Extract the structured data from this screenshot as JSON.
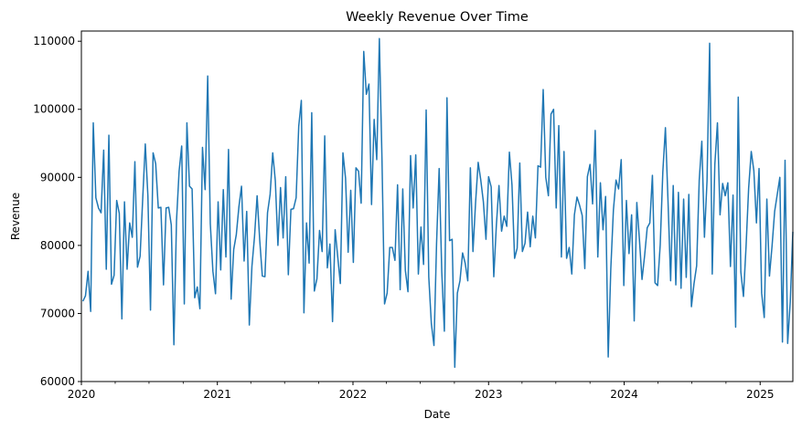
{
  "chart_data": {
    "type": "line",
    "title": "Weekly Revenue Over Time",
    "xlabel": "Date",
    "ylabel": "Revenue",
    "x_range": [
      "2020-01-01",
      "2025-03-30"
    ],
    "ylim": [
      60000,
      111500
    ],
    "x_ticks": [
      "2020",
      "2021",
      "2022",
      "2023",
      "2024",
      "2025"
    ],
    "y_ticks": [
      "60000",
      "70000",
      "80000",
      "90000",
      "100000",
      "110000"
    ],
    "grid": false,
    "legend": "none",
    "series": [
      {
        "color": "#1f77b4",
        "frequency": "weekly",
        "start": "2020-01-05",
        "values": [
          71800,
          72600,
          76200,
          70300,
          98000,
          87000,
          85500,
          84800,
          94000,
          76500,
          96200,
          74300,
          75600,
          86600,
          84700,
          69200,
          86400,
          76500,
          83300,
          81200,
          92300,
          76800,
          78400,
          86800,
          94900,
          87300,
          70500,
          93600,
          92000,
          85500,
          85600,
          74200,
          85500,
          85600,
          83000,
          65400,
          83600,
          90900,
          94600,
          71400,
          98000,
          88700,
          88300,
          72300,
          73900,
          70700,
          94400,
          88200,
          104900,
          83200,
          76200,
          72900,
          86400,
          76400,
          88200,
          78300,
          94100,
          72100,
          79400,
          81600,
          85700,
          88700,
          77700,
          85000,
          68300,
          76900,
          81300,
          87300,
          80800,
          75500,
          75400,
          84800,
          87500,
          93600,
          89500,
          80000,
          88500,
          81100,
          90100,
          75700,
          85300,
          85400,
          87000,
          97500,
          101300,
          70100,
          83300,
          77400,
          99500,
          73300,
          75100,
          82200,
          79100,
          96100,
          76700,
          80200,
          68800,
          82300,
          78300,
          74400,
          93600,
          89900,
          79000,
          88100,
          77500,
          91400,
          90900,
          86200,
          108500,
          102200,
          103700,
          86000,
          98500,
          92600,
          110400,
          92900,
          71400,
          73000,
          79700,
          79700,
          77800,
          88900,
          73500,
          88300,
          76300,
          73200,
          93200,
          85500,
          93300,
          75800,
          82700,
          77200,
          99900,
          75400,
          68500,
          65300,
          80300,
          91300,
          76100,
          67400,
          101700,
          80700,
          80900,
          62100,
          73000,
          74800,
          78900,
          77400,
          74800,
          91400,
          79100,
          86300,
          92200,
          89600,
          86400,
          80900,
          90100,
          88600,
          75400,
          83000,
          88800,
          82100,
          84300,
          82800,
          93700,
          88900,
          78100,
          79600,
          92100,
          79100,
          80300,
          84900,
          79800,
          84300,
          81100,
          91700,
          91500,
          102900,
          90000,
          87300,
          99300,
          100000,
          85500,
          97600,
          78300,
          93800,
          78100,
          79700,
          75800,
          84500,
          87100,
          85900,
          84400,
          76600,
          90100,
          91900,
          86100,
          96900,
          78300,
          89200,
          82300,
          87200,
          63600,
          76600,
          85200,
          89600,
          88300,
          92600,
          74100,
          86600,
          78800,
          84500,
          68900,
          86300,
          80900,
          75000,
          78500,
          82600,
          83300,
          90300,
          74500,
          74100,
          80100,
          90800,
          97300,
          86500,
          74800,
          88800,
          74200,
          87800,
          73700,
          86800,
          75300,
          87500,
          71000,
          74400,
          77000,
          89600,
          95300,
          81200,
          89500,
          109700,
          75800,
          91900,
          98000,
          84500,
          89100,
          87300,
          89200,
          76900,
          87400,
          68000,
          101800,
          76100,
          72500,
          79800,
          88400,
          93800,
          91000,
          83300,
          91300,
          73000,
          69400,
          86800,
          75500,
          79900,
          85000,
          87500,
          90000,
          65800,
          92500,
          65600,
          71700,
          82000
        ]
      }
    ]
  }
}
